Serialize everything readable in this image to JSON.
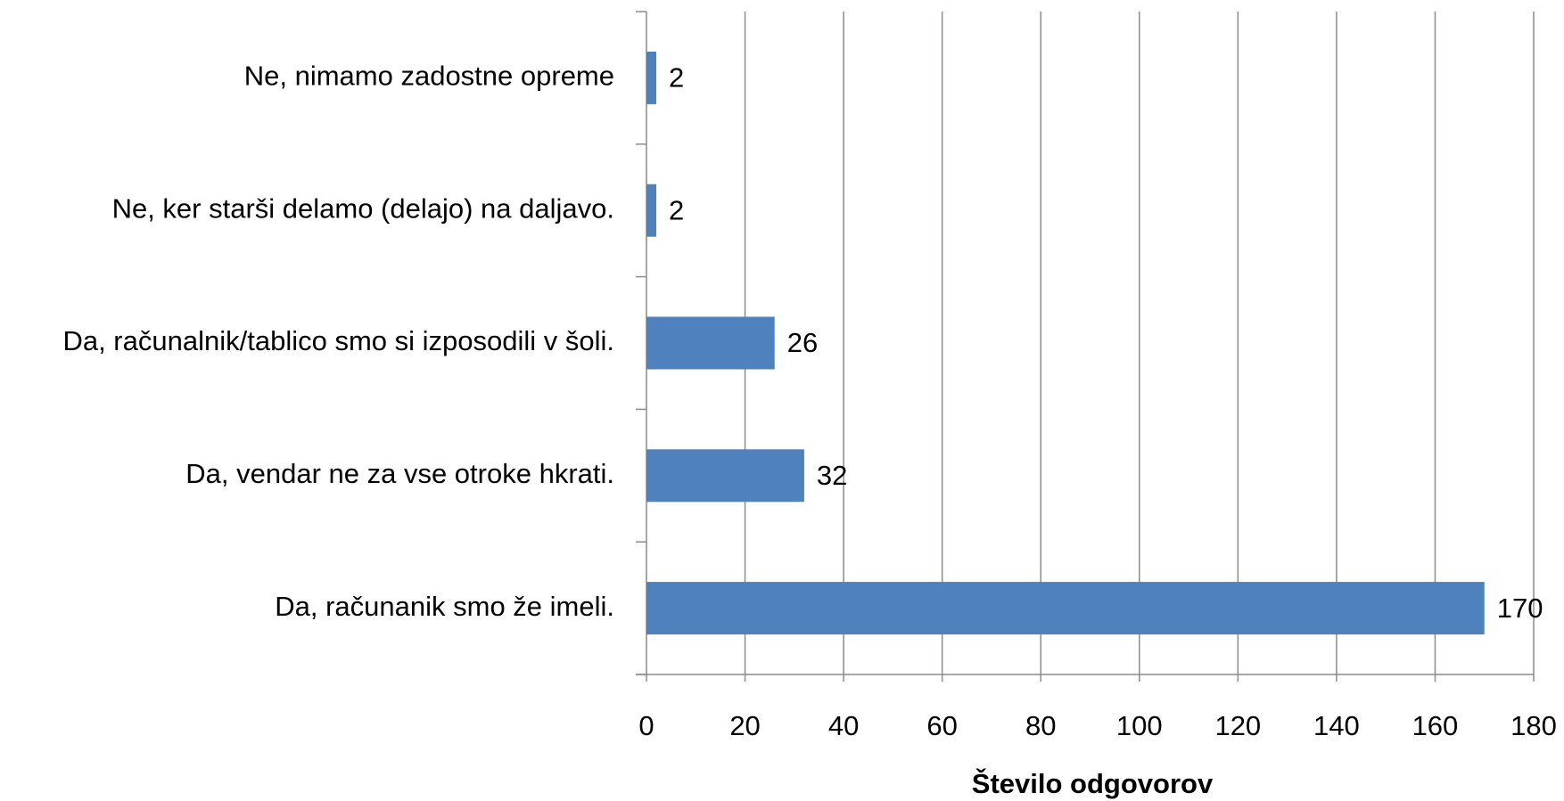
{
  "chart_data": {
    "type": "barh",
    "categories": [
      "Ne, nimamo zadostne opreme",
      "Ne, ker starši delamo (delajo) na daljavo.",
      "Da, računalnik/tablico smo si izposodili v šoli.",
      "Da, vendar ne za vse otroke hkrati.",
      "Da, računanik smo že imeli."
    ],
    "values": [
      2,
      2,
      26,
      32,
      170
    ],
    "color": "#4f81bd",
    "xlabel": "Število odgovorov",
    "xlim": [
      0,
      180
    ],
    "xticks": [
      0,
      20,
      40,
      60,
      80,
      100,
      120,
      140,
      160,
      180
    ],
    "grid": true
  }
}
